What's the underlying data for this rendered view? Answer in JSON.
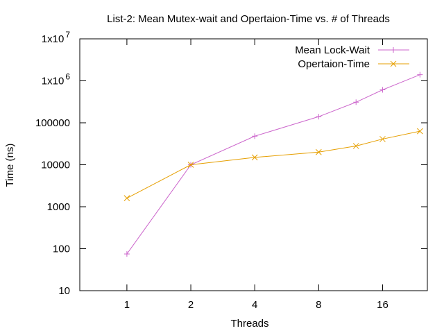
{
  "chart_data": {
    "type": "line",
    "title": "List-2: Mean Mutex-wait and Opertaion-Time vs. # of Threads",
    "xlabel": "Threads",
    "ylabel": "Time (ns)",
    "x_scale": "log2",
    "y_scale": "log10",
    "xlim": [
      0.6,
      26
    ],
    "ylim": [
      10,
      10000000
    ],
    "x_ticks": [
      1,
      2,
      4,
      8,
      16
    ],
    "x_tick_labels": [
      "1",
      "2",
      "4",
      "8",
      "16"
    ],
    "y_ticks": [
      {
        "value": 10,
        "base": "10",
        "exp": ""
      },
      {
        "value": 100,
        "base": "100",
        "exp": ""
      },
      {
        "value": 1000,
        "base": "1000",
        "exp": ""
      },
      {
        "value": 10000,
        "base": "10000",
        "exp": ""
      },
      {
        "value": 100000,
        "base": "100000",
        "exp": ""
      },
      {
        "value": 1000000,
        "base": "1x10",
        "exp": "6"
      },
      {
        "value": 10000000,
        "base": "1x10",
        "exp": "7"
      }
    ],
    "grid": false,
    "legend_position": "top-right",
    "series": [
      {
        "name": "Mean Lock-Wait",
        "color": "#cc66cc",
        "marker": "plus",
        "points": [
          [
            1,
            75
          ],
          [
            2,
            10000
          ],
          [
            4,
            48000
          ],
          [
            8,
            140000
          ],
          [
            12,
            310000
          ],
          [
            16,
            610000
          ],
          [
            24,
            1400000
          ]
        ]
      },
      {
        "name": "Opertaion-Time",
        "color": "#e69f00",
        "marker": "cross",
        "points": [
          [
            1,
            1600
          ],
          [
            2,
            10000
          ],
          [
            4,
            15000
          ],
          [
            8,
            20000
          ],
          [
            12,
            28000
          ],
          [
            16,
            41000
          ],
          [
            24,
            63000
          ]
        ]
      }
    ]
  }
}
